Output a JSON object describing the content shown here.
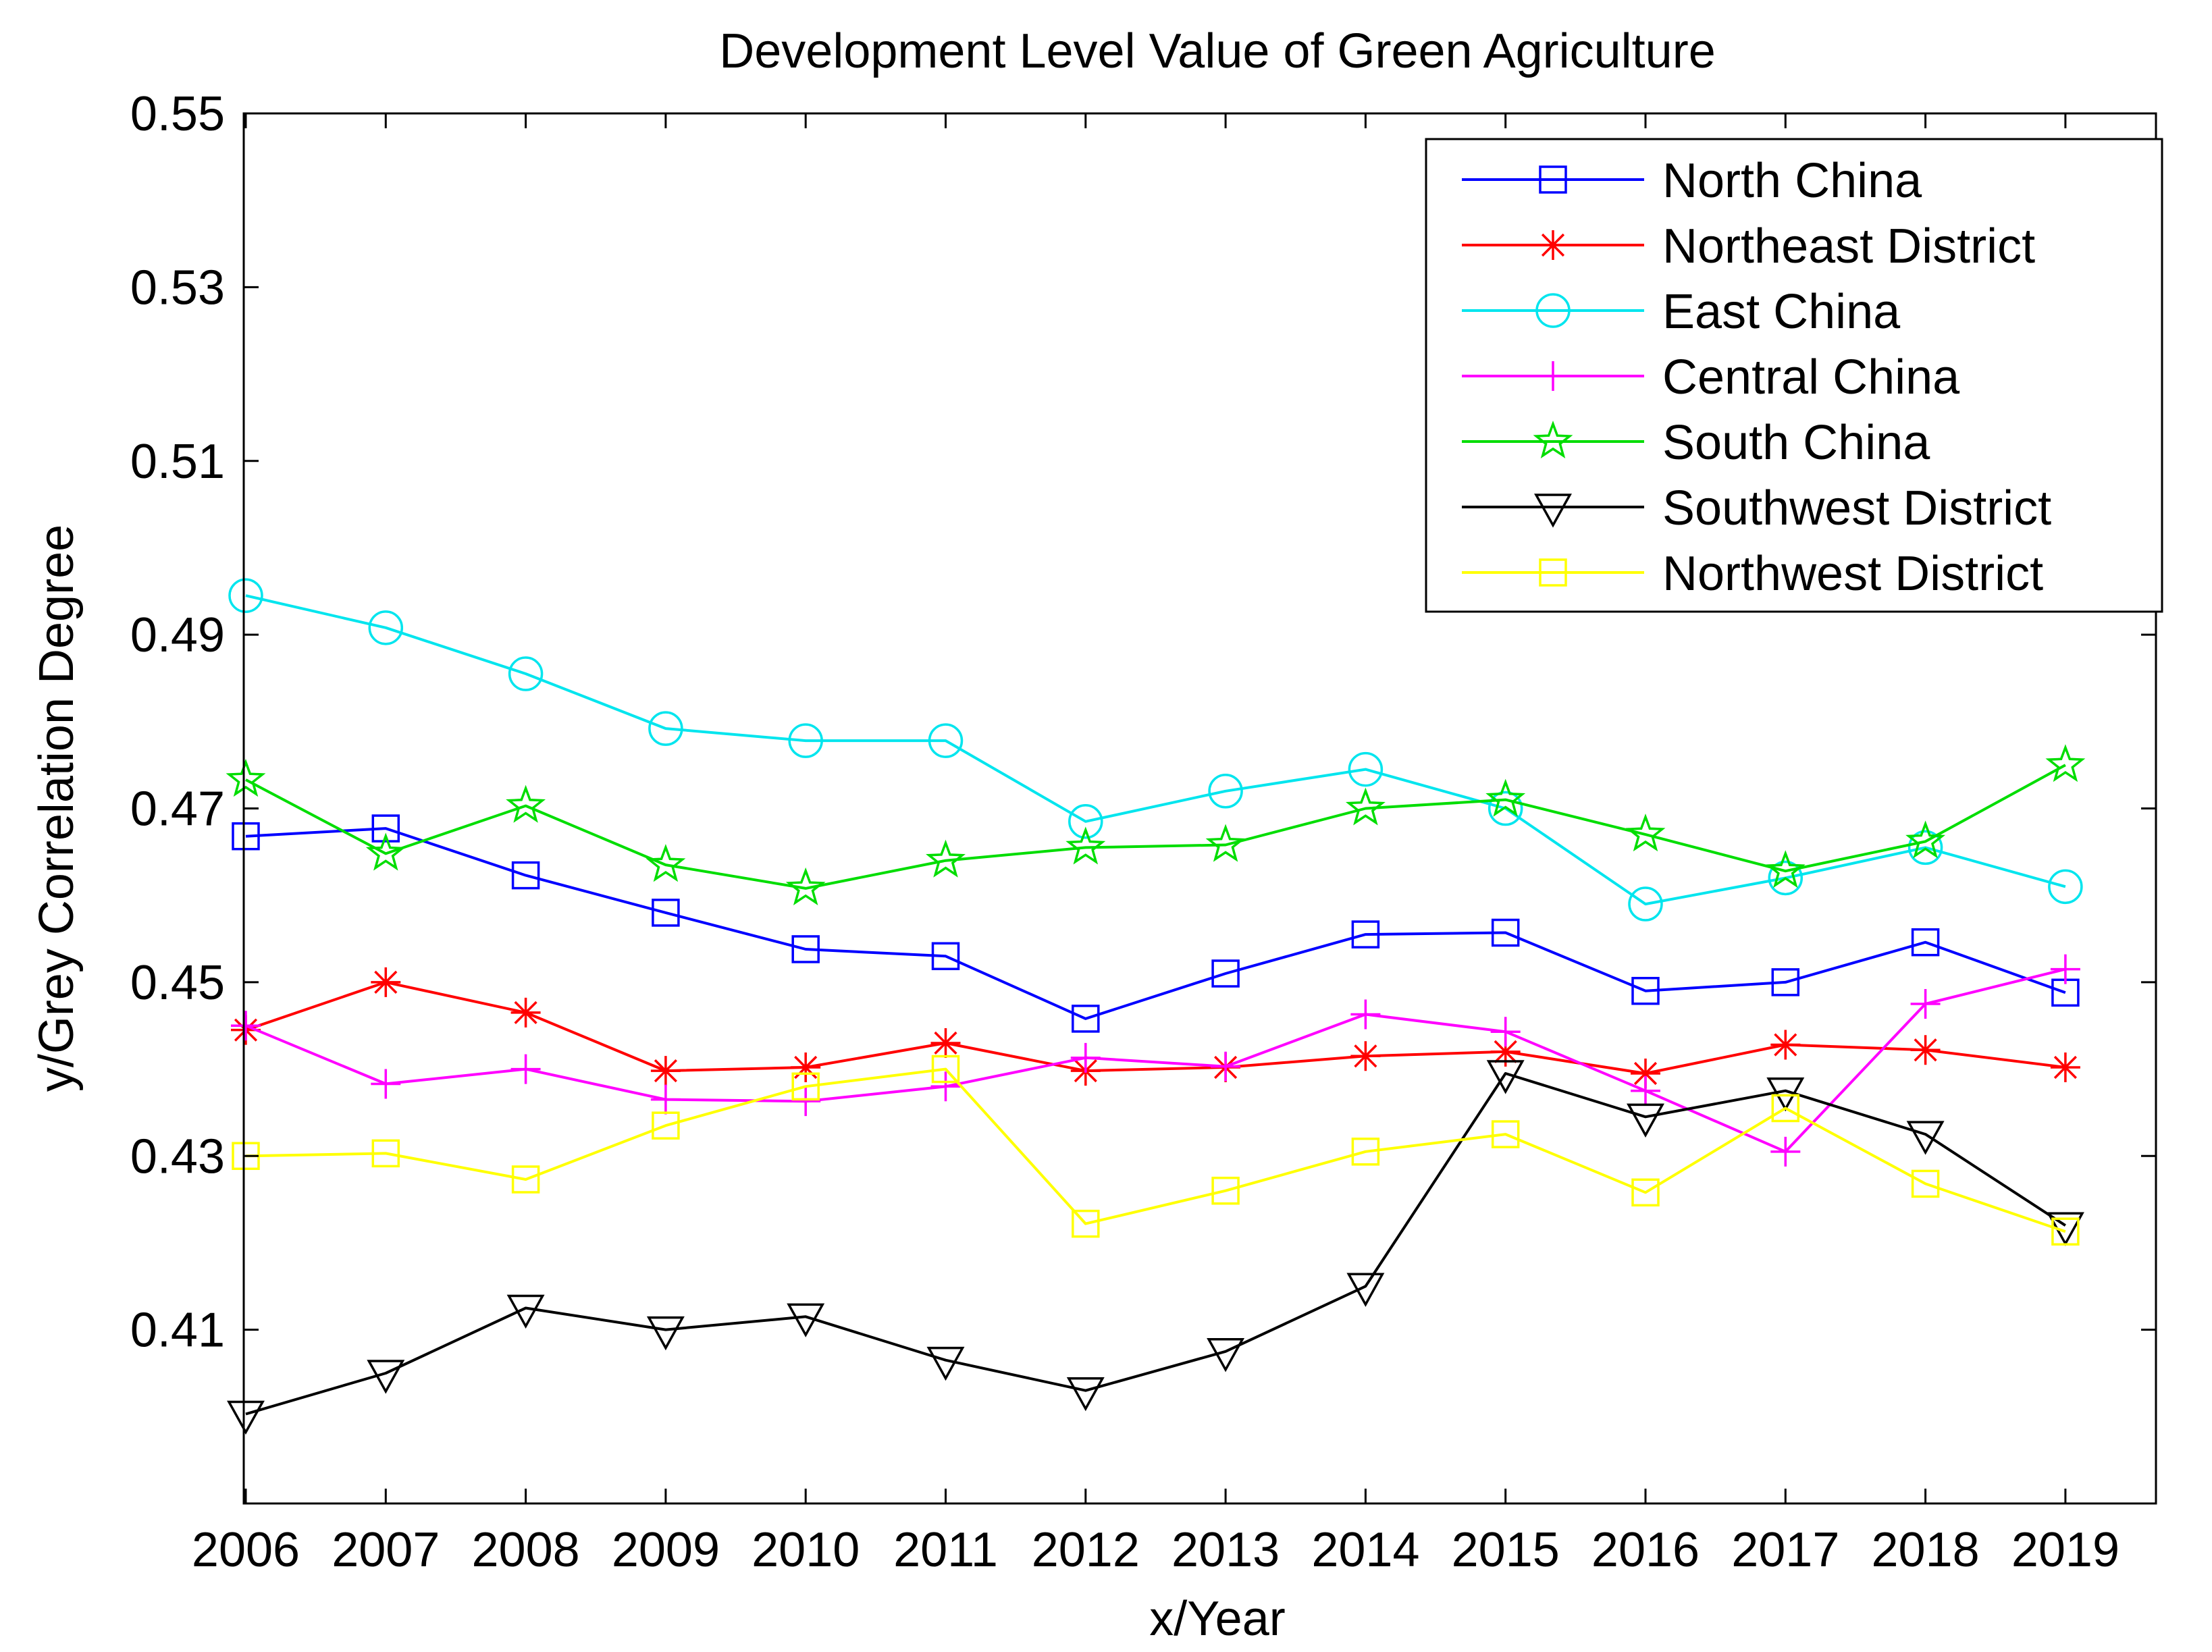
{
  "chart_data": {
    "type": "line",
    "title": "Development Level Value of Green Agriculture",
    "xlabel": "x/Year",
    "ylabel": "y/Grey Correlation Degree",
    "x": [
      "2006",
      "2007",
      "2008",
      "2009",
      "2010",
      "2011",
      "2012",
      "2013",
      "2014",
      "2015",
      "2016",
      "2017",
      "2018",
      "2019"
    ],
    "ylim": [
      0.39,
      0.55
    ],
    "yticks": [
      "0.41",
      "0.43",
      "0.45",
      "0.47",
      "0.49",
      "0.51",
      "0.53",
      "0.55"
    ],
    "legend_position": "top-right",
    "series": [
      {
        "name": "North China",
        "color": "#0000ff",
        "marker": "square",
        "values": [
          0.4668,
          0.4677,
          0.4623,
          0.458,
          0.4538,
          0.453,
          0.4458,
          0.451,
          0.4555,
          0.4557,
          0.449,
          0.45,
          0.4546,
          0.4488
        ]
      },
      {
        "name": "Northeast District",
        "color": "#ff0000",
        "marker": "asterisk",
        "values": [
          0.4445,
          0.45,
          0.4465,
          0.4398,
          0.4402,
          0.443,
          0.4398,
          0.4402,
          0.4415,
          0.442,
          0.4395,
          0.4428,
          0.4422,
          0.4402
        ]
      },
      {
        "name": "East China",
        "color": "#00e5ee",
        "marker": "circle",
        "values": [
          0.4945,
          0.4908,
          0.4855,
          0.4792,
          0.4778,
          0.4778,
          0.4685,
          0.472,
          0.4745,
          0.47,
          0.459,
          0.462,
          0.4655,
          0.461
        ]
      },
      {
        "name": "Central China",
        "color": "#ff00ff",
        "marker": "plus",
        "values": [
          0.445,
          0.4383,
          0.44,
          0.4365,
          0.4363,
          0.438,
          0.4413,
          0.4403,
          0.4463,
          0.4443,
          0.4375,
          0.4305,
          0.4475,
          0.4515
        ]
      },
      {
        "name": "South China",
        "color": "#00dd00",
        "marker": "star",
        "values": [
          0.4733,
          0.4648,
          0.4703,
          0.4635,
          0.4608,
          0.464,
          0.4655,
          0.4658,
          0.47,
          0.471,
          0.467,
          0.4628,
          0.4662,
          0.475
        ]
      },
      {
        "name": "Southwest District",
        "color": "#000000",
        "marker": "triangle-down",
        "values": [
          0.4003,
          0.405,
          0.4125,
          0.41,
          0.4115,
          0.4065,
          0.403,
          0.4075,
          0.415,
          0.4395,
          0.4345,
          0.4375,
          0.4325,
          0.422
        ]
      },
      {
        "name": "Northwest District",
        "color": "#ffff00",
        "marker": "square",
        "values": [
          0.43,
          0.4303,
          0.4273,
          0.4335,
          0.438,
          0.44,
          0.4222,
          0.426,
          0.4305,
          0.4325,
          0.4258,
          0.4355,
          0.4268,
          0.4213
        ]
      }
    ]
  }
}
